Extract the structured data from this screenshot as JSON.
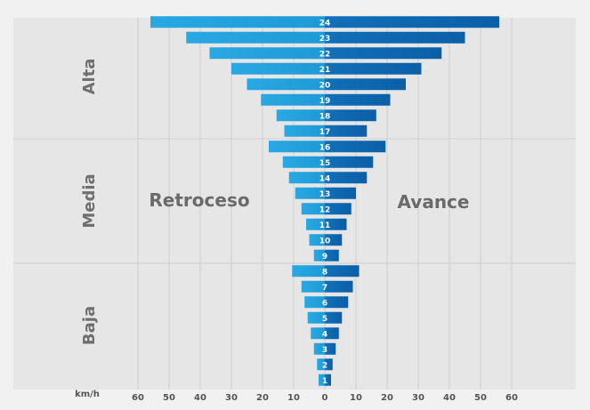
{
  "chart_data": {
    "type": "bar",
    "orientation": "horizontal-diverging",
    "unit_label": "km/h",
    "x_ticks": [
      60,
      50,
      40,
      30,
      20,
      10,
      0,
      10,
      20,
      30,
      40,
      50,
      60
    ],
    "xlim": [
      -60,
      60
    ],
    "categories": [
      "1",
      "2",
      "3",
      "4",
      "5",
      "6",
      "7",
      "8",
      "9",
      "10",
      "11",
      "12",
      "13",
      "14",
      "15",
      "16",
      "17",
      "18",
      "19",
      "20",
      "21",
      "22",
      "23",
      "24"
    ],
    "series": [
      {
        "name": "Retroceso",
        "values": [
          2,
          2.5,
          3.5,
          4.5,
          5.5,
          6.5,
          7.5,
          10.5,
          3.5,
          5,
          6,
          7.5,
          9.5,
          11.5,
          13.5,
          18,
          13,
          15.5,
          20.5,
          25,
          30,
          37,
          44.5,
          56
        ]
      },
      {
        "name": "Avance",
        "values": [
          2,
          2.5,
          3.5,
          4.5,
          5.5,
          7.5,
          9,
          11,
          4.5,
          5.5,
          7,
          8.5,
          10,
          13.5,
          15.5,
          19.5,
          13.5,
          16.5,
          21,
          26,
          31,
          37.5,
          45,
          56
        ]
      }
    ],
    "groups": [
      {
        "label": "Baja",
        "from": 1,
        "to": 8
      },
      {
        "label": "Media",
        "from": 9,
        "to": 16
      },
      {
        "label": "Alta",
        "from": 17,
        "to": 24
      }
    ],
    "colors": {
      "left": "#1e9ad6",
      "right": "#0b5fa8",
      "grid": "#cfcfcf",
      "text": "#6a6a6a"
    }
  }
}
